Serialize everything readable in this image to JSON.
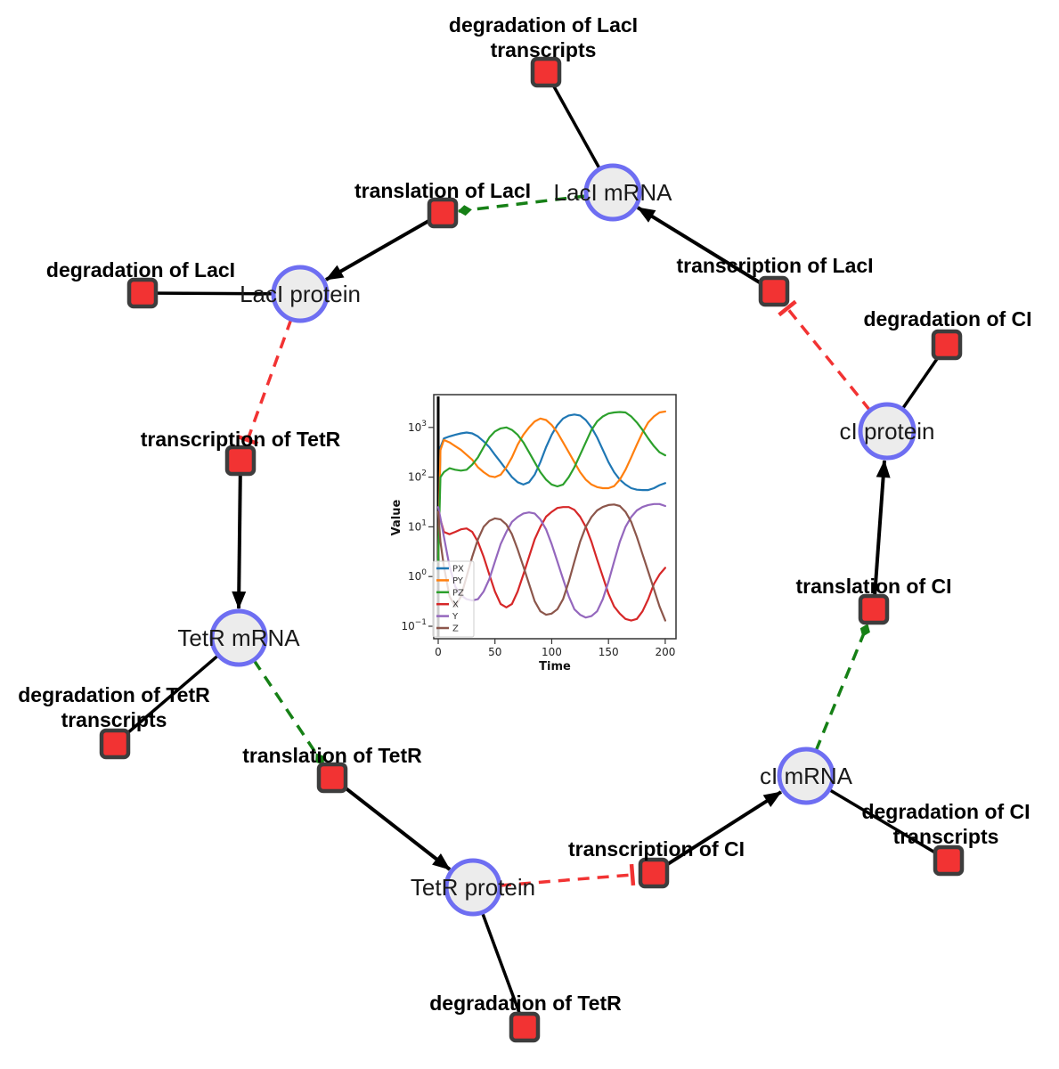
{
  "diagram": {
    "species": [
      {
        "id": "laci-mrna",
        "label": "LacI mRNA"
      },
      {
        "id": "laci-protein",
        "label": "LacI protein"
      },
      {
        "id": "tetr-mrna",
        "label": "TetR mRNA"
      },
      {
        "id": "tetr-protein",
        "label": "TetR protein"
      },
      {
        "id": "ci-mrna",
        "label": "cI mRNA"
      },
      {
        "id": "ci-protein",
        "label": "cI protein"
      }
    ],
    "reactions": [
      {
        "id": "deg-laci-transcripts",
        "label": "degradation of LacI transcripts",
        "lines": [
          "degradation of LacI",
          "transcripts"
        ]
      },
      {
        "id": "translation-laci",
        "label": "translation of LacI",
        "lines": [
          "translation of LacI"
        ]
      },
      {
        "id": "deg-laci",
        "label": "degradation of LacI",
        "lines": [
          "degradation of LacI"
        ]
      },
      {
        "id": "transcription-laci",
        "label": "transcription of LacI",
        "lines": [
          "transcription of LacI"
        ]
      },
      {
        "id": "deg-ci",
        "label": "degradation of CI",
        "lines": [
          "degradation of CI"
        ]
      },
      {
        "id": "transcription-tetr",
        "label": "transcription of TetR",
        "lines": [
          "transcription of TetR"
        ]
      },
      {
        "id": "deg-tetr-transcripts",
        "label": "degradation of TetR transcripts",
        "lines": [
          "degradation of TetR",
          "transcripts"
        ]
      },
      {
        "id": "translation-tetr",
        "label": "translation of TetR",
        "lines": [
          "translation of TetR"
        ]
      },
      {
        "id": "deg-tetr",
        "label": "degradation of TetR",
        "lines": [
          "degradation of TetR"
        ]
      },
      {
        "id": "transcription-ci",
        "label": "transcription of CI",
        "lines": [
          "transcription of CI"
        ]
      },
      {
        "id": "deg-ci-transcripts",
        "label": "degradation of CI transcripts",
        "lines": [
          "degradation of CI",
          "transcripts"
        ]
      },
      {
        "id": "translation-ci",
        "label": "translation of CI",
        "lines": [
          "translation of CI"
        ]
      }
    ],
    "edges": [
      {
        "from": "LacI mRNA",
        "to": "degradation of LacI transcripts",
        "type": "reactant"
      },
      {
        "from": "LacI mRNA",
        "to": "translation of LacI",
        "type": "modifier"
      },
      {
        "from": "translation of LacI",
        "to": "LacI protein",
        "type": "product"
      },
      {
        "from": "LacI protein",
        "to": "degradation of LacI",
        "type": "reactant"
      },
      {
        "from": "LacI protein",
        "to": "transcription of TetR",
        "type": "inhibition"
      },
      {
        "from": "transcription of TetR",
        "to": "TetR mRNA",
        "type": "product"
      },
      {
        "from": "TetR mRNA",
        "to": "degradation of TetR transcripts",
        "type": "reactant"
      },
      {
        "from": "TetR mRNA",
        "to": "translation of TetR",
        "type": "modifier"
      },
      {
        "from": "translation of TetR",
        "to": "TetR protein",
        "type": "product"
      },
      {
        "from": "TetR protein",
        "to": "degradation of TetR",
        "type": "reactant"
      },
      {
        "from": "TetR protein",
        "to": "transcription of CI",
        "type": "inhibition"
      },
      {
        "from": "transcription of CI",
        "to": "cI mRNA",
        "type": "product"
      },
      {
        "from": "cI mRNA",
        "to": "degradation of CI transcripts",
        "type": "reactant"
      },
      {
        "from": "cI mRNA",
        "to": "translation of CI",
        "type": "modifier"
      },
      {
        "from": "translation of CI",
        "to": "cI protein",
        "type": "product"
      },
      {
        "from": "cI protein",
        "to": "degradation of CI",
        "type": "reactant"
      },
      {
        "from": "cI protein",
        "to": "transcription of LacI",
        "type": "inhibition"
      },
      {
        "from": "transcription of LacI",
        "to": "LacI mRNA",
        "type": "product"
      }
    ],
    "colors": {
      "species_fill": "#ececec",
      "species_border": "#6e6ef2",
      "reaction_fill": "#f23333",
      "reaction_border": "#3d3d3d",
      "product_edge": "#000000",
      "modifier_edge": "#168016",
      "inhibition_edge": "#f23333"
    }
  },
  "chart_data": {
    "type": "line",
    "title": "",
    "xlabel": "Time",
    "ylabel": "Value",
    "yscale": "log",
    "xlim": [
      -5,
      210
    ],
    "ylim": [
      0.056,
      4600
    ],
    "grid": false,
    "legend_position": "lower left",
    "x_ticks": [
      0,
      50,
      100,
      150,
      200
    ],
    "y_tick_exponents": [
      -1,
      0,
      1,
      2,
      3
    ],
    "event_line": {
      "t": 0,
      "color": "#000000"
    },
    "t": [
      0,
      2,
      5,
      10,
      15,
      20,
      25,
      30,
      35,
      40,
      45,
      50,
      55,
      60,
      65,
      70,
      75,
      80,
      85,
      90,
      95,
      100,
      105,
      110,
      115,
      120,
      125,
      130,
      135,
      140,
      145,
      150,
      155,
      160,
      165,
      170,
      175,
      180,
      185,
      190,
      195,
      200
    ],
    "series": [
      {
        "name": "PX",
        "color": "#1f77b4",
        "values": [
          2,
          400,
          600,
          660,
          710,
          760,
          790,
          760,
          660,
          525,
          400,
          280,
          200,
          140,
          100,
          79,
          71,
          79,
          112,
          200,
          400,
          710,
          1120,
          1510,
          1740,
          1820,
          1740,
          1410,
          1000,
          630,
          355,
          200,
          126,
          89,
          71,
          60,
          56,
          55,
          55,
          60,
          69,
          76
        ]
      },
      {
        "name": "PY",
        "color": "#ff7f0e",
        "values": [
          2,
          350,
          560,
          500,
          420,
          355,
          280,
          224,
          158,
          126,
          105,
          100,
          112,
          158,
          250,
          450,
          710,
          1000,
          1320,
          1510,
          1410,
          1120,
          790,
          500,
          316,
          200,
          126,
          89,
          71,
          63,
          60,
          60,
          66,
          89,
          141,
          250,
          450,
          790,
          1260,
          1660,
          2000,
          2090
        ]
      },
      {
        "name": "PZ",
        "color": "#2ca02c",
        "values": [
          2,
          100,
          126,
          151,
          141,
          135,
          141,
          178,
          250,
          400,
          630,
          830,
          955,
          1000,
          890,
          710,
          500,
          316,
          200,
          126,
          89,
          71,
          65,
          71,
          100,
          158,
          280,
          500,
          890,
          1320,
          1660,
          1900,
          2000,
          2040,
          2000,
          1660,
          1260,
          890,
          600,
          420,
          316,
          275
        ]
      },
      {
        "name": "X",
        "color": "#d62728",
        "values": [
          20,
          14,
          7.9,
          7.1,
          7.9,
          8.9,
          9.3,
          7.9,
          5.0,
          2.5,
          1.1,
          0.5,
          0.28,
          0.24,
          0.28,
          0.5,
          1.1,
          2.5,
          5.6,
          10,
          16,
          20,
          24,
          25,
          25,
          22,
          16,
          10,
          5.0,
          2.2,
          1.0,
          0.45,
          0.25,
          0.18,
          0.14,
          0.13,
          0.14,
          0.2,
          0.35,
          0.71,
          1.1,
          1.5
        ]
      },
      {
        "name": "Y",
        "color": "#9467bd",
        "values": [
          25,
          15,
          6.3,
          1.6,
          0.63,
          0.42,
          0.35,
          0.33,
          0.35,
          0.5,
          0.89,
          2.0,
          4.5,
          7.9,
          12.6,
          15.8,
          18.6,
          19.5,
          18.6,
          14.1,
          8.9,
          4.5,
          2.0,
          0.89,
          0.4,
          0.22,
          0.17,
          0.15,
          0.16,
          0.2,
          0.35,
          0.79,
          2.0,
          5.0,
          10,
          15.8,
          21.4,
          25.1,
          27.5,
          28.8,
          28.8,
          26.3
        ]
      },
      {
        "name": "Z",
        "color": "#8c564b",
        "values": [
          20,
          5,
          1.6,
          0.4,
          0.25,
          0.4,
          1.0,
          2.5,
          5.6,
          10,
          13.2,
          14.8,
          14.1,
          11.2,
          7.1,
          3.5,
          1.6,
          0.71,
          0.32,
          0.2,
          0.17,
          0.18,
          0.22,
          0.35,
          0.79,
          2.0,
          5.0,
          10,
          15.8,
          21.4,
          25.1,
          27.5,
          28.2,
          26.3,
          20,
          12.6,
          6.3,
          2.8,
          1.26,
          0.56,
          0.25,
          0.13
        ]
      }
    ]
  }
}
